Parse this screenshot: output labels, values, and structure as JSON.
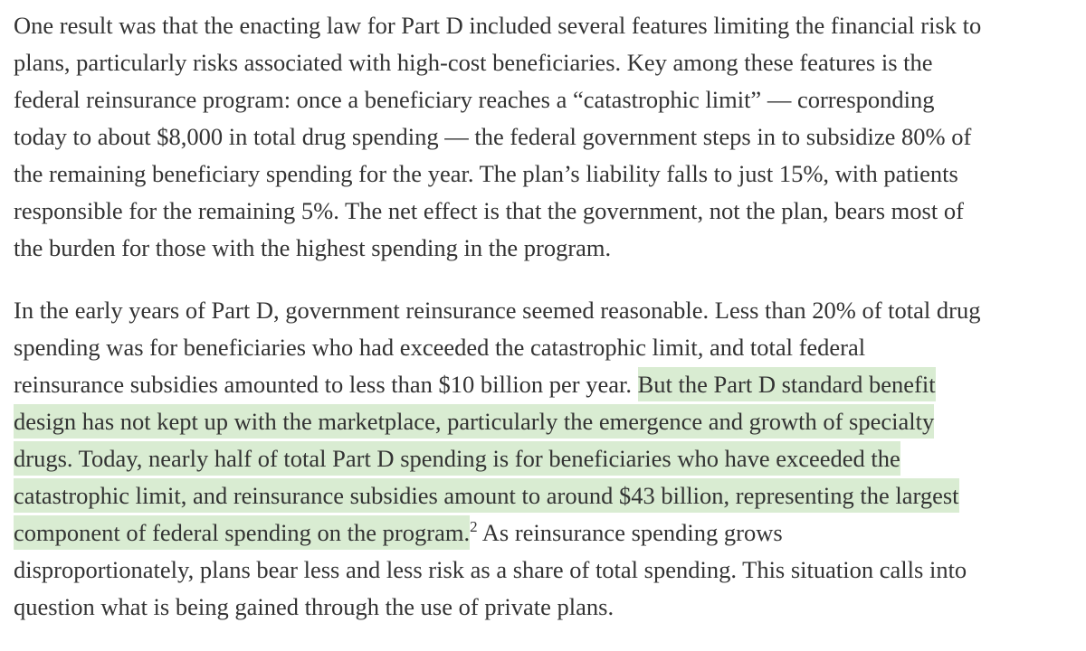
{
  "article": {
    "paragraph1": {
      "lines": [
        "One result was that the enacting law for Part D included several features limiting the financial risk to",
        "plans, particularly risks associated with high-cost beneficiaries. Key among these features is the",
        "federal reinsurance program: once a beneficiary reaches a “catastrophic limit” — corresponding",
        "today to about $8,000 in total drug spending — the federal government steps in to subsidize 80% of",
        "the remaining beneficiary spending for the year. The plan’s liability falls to just 15%, with patients",
        "responsible for the remaining 5%. The net effect is that the government, not the plan, bears most of",
        "the burden for those with the highest spending in the program."
      ]
    },
    "paragraph2": {
      "line1": "In the early years of Part D, government reinsurance seemed reasonable. Less than 20% of total drug",
      "line2": "spending was for beneficiaries who had exceeded the catastrophic limit, and total federal",
      "line3_plain": "reinsurance subsidies amounted to less than $10 billion per year. ",
      "line3_highlight": "But the Part D standard benefit",
      "line4_highlight": "design has not kept up with the marketplace, particularly the emergence and growth of specialty",
      "line5_highlight": "drugs. Today, nearly half of total Part D spending is for beneficiaries who have exceeded the",
      "line6_highlight": "catastrophic limit, and reinsurance subsidies amount to around $43 billion, representing the largest",
      "line7_highlight": "component of federal spending on the program.",
      "footnote_marker": "2",
      "line7_plain": " As reinsurance spending grows",
      "line8": "disproportionately, plans bear less and less risk as a share of total spending. This situation calls into",
      "line9": "question what is being gained through the use of private plans."
    },
    "highlight_color": "#d9ecd2",
    "text_color": "#333333"
  }
}
